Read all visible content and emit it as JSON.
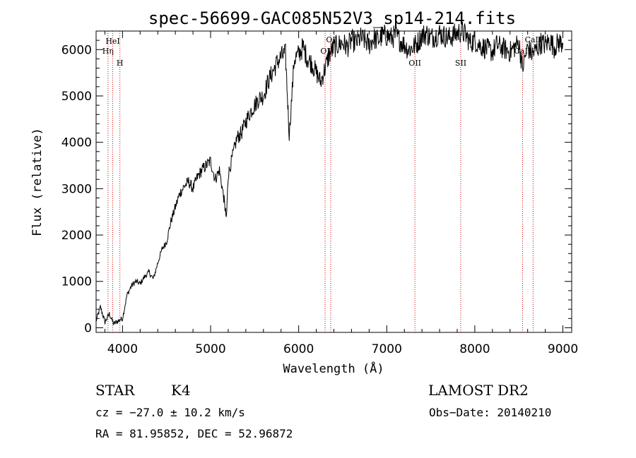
{
  "chart_data": {
    "type": "line",
    "title": "spec-56699-GAC085N52V3_sp14-214.fits",
    "xlabel": "Wavelength (Å)",
    "ylabel": "Flux (relative)",
    "xlim": [
      3700,
      9100
    ],
    "ylim": [
      -100,
      6400
    ],
    "x_ticks": [
      4000,
      5000,
      6000,
      7000,
      8000,
      9000
    ],
    "y_ticks": [
      0,
      1000,
      2000,
      3000,
      4000,
      5000,
      6000
    ],
    "grid": false,
    "line_color": "#000000",
    "marker_color": "#cc0000",
    "series": [
      {
        "x": [
          3700,
          3750,
          3800,
          3850,
          3900,
          3950,
          4000,
          4050,
          4100,
          4150,
          4200,
          4250,
          4300,
          4350,
          4400,
          4450,
          4500,
          4550,
          4600,
          4650,
          4700,
          4750,
          4800,
          4850,
          4900,
          4950,
          5000,
          5050,
          5100,
          5150,
          5180,
          5200,
          5250,
          5300,
          5350,
          5400,
          5450,
          5500,
          5550,
          5600,
          5650,
          5700,
          5750,
          5800,
          5850,
          5893,
          5950,
          6000,
          6050,
          6100,
          6150,
          6200,
          6250,
          6300,
          6350,
          6400,
          6450,
          6500,
          6550,
          6600,
          6650,
          6700,
          6750,
          6800,
          6850,
          6900,
          6950,
          7000,
          7050,
          7100,
          7150,
          7200,
          7250,
          7300,
          7350,
          7400,
          7450,
          7500,
          7550,
          7600,
          7650,
          7700,
          7750,
          7800,
          7850,
          7900,
          7950,
          8000,
          8050,
          8100,
          8150,
          8200,
          8250,
          8300,
          8350,
          8400,
          8450,
          8500,
          8542,
          8600,
          8650,
          8700,
          8750,
          8800,
          8850,
          8900,
          8950,
          9000
        ],
        "y": [
          150,
          450,
          120,
          300,
          80,
          150,
          200,
          700,
          900,
          1000,
          950,
          1100,
          1200,
          1050,
          1400,
          1700,
          1850,
          2300,
          2600,
          2900,
          3050,
          3150,
          3000,
          3250,
          3400,
          3500,
          3600,
          3200,
          3400,
          2800,
          2350,
          3300,
          3700,
          4100,
          4200,
          4450,
          4650,
          4800,
          4950,
          5000,
          5300,
          5500,
          5700,
          5850,
          5900,
          4150,
          5800,
          5900,
          6050,
          5800,
          5700,
          5500,
          5300,
          5600,
          5900,
          6050,
          6100,
          6150,
          6050,
          6200,
          6150,
          6250,
          6200,
          6100,
          6250,
          6200,
          6300,
          6300,
          6250,
          6300,
          6200,
          6100,
          6000,
          6050,
          6150,
          6300,
          6350,
          6250,
          6300,
          6350,
          6300,
          6250,
          6300,
          6350,
          6400,
          6300,
          6150,
          6200,
          6100,
          6050,
          6000,
          5950,
          6100,
          6050,
          6000,
          5950,
          6050,
          6150,
          5600,
          6050,
          5900,
          6000,
          6150,
          6100,
          6200,
          6050,
          6150,
          6150
        ]
      }
    ],
    "line_markers": [
      {
        "label": "HeI",
        "x": 3889
      },
      {
        "label": "Hη",
        "x": 3835
      },
      {
        "label": "H",
        "x": 3970
      },
      {
        "label": "OI",
        "x": 6364
      },
      {
        "label": "OI",
        "x": 6300
      },
      {
        "label": "OII",
        "x": 7320
      },
      {
        "label": "SII",
        "x": 7840
      },
      {
        "label": "CaII",
        "x": 8662
      },
      {
        "label": "CaII",
        "x": 8542
      }
    ]
  },
  "footer": {
    "object_class": "STAR",
    "subclass": "K4",
    "survey": "LAMOST  DR2",
    "cz": "cz = −27.0 ± 10.2 km/s",
    "obs_date": "Obs−Date: 20140210",
    "coords": "RA =  81.95852, DEC =  52.96872"
  }
}
